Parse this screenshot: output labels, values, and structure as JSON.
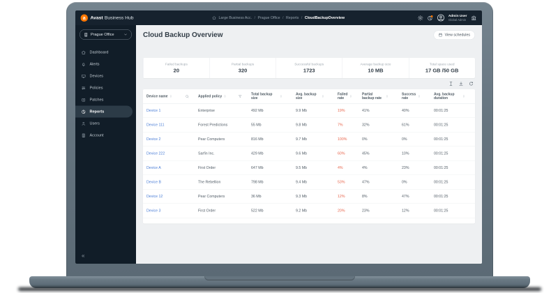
{
  "topbar": {
    "logo_letter": "a",
    "brand_bold": "Avast",
    "brand_rest": "Business Hub",
    "breadcrumb_separator": "/",
    "breadcrumbs": [
      {
        "label": "Large Business Acc."
      },
      {
        "label": "Prague Office"
      },
      {
        "label": "Reports"
      },
      {
        "label": "CloudBackupOverview",
        "current": true
      }
    ],
    "user_name": "Admin User",
    "user_role": "Global Admin"
  },
  "sidebar": {
    "org_selector": "Prague Office",
    "collapse_glyph": "«",
    "items": [
      {
        "label": "Dashboard",
        "icon": "home-icon",
        "name": "sidebar-item-dashboard"
      },
      {
        "label": "Alerts",
        "icon": "bell-icon",
        "name": "sidebar-item-alerts"
      },
      {
        "label": "Devices",
        "icon": "monitor-icon",
        "name": "sidebar-item-devices"
      },
      {
        "label": "Policies",
        "icon": "sliders-icon",
        "name": "sidebar-item-policies"
      },
      {
        "label": "Patches",
        "icon": "patch-icon",
        "name": "sidebar-item-patches"
      },
      {
        "label": "Reports",
        "icon": "pie-chart-icon",
        "name": "sidebar-item-reports",
        "active": true
      },
      {
        "label": "Users",
        "icon": "user-icon",
        "name": "sidebar-item-users"
      },
      {
        "label": "Account",
        "icon": "building-icon",
        "name": "sidebar-item-account"
      }
    ]
  },
  "page": {
    "title": "Cloud Backup Overview",
    "view_schedules_label": "View schedules"
  },
  "stats": [
    {
      "label": "Failed backups",
      "value": "20"
    },
    {
      "label": "Partial backups",
      "value": "320"
    },
    {
      "label": "Successful backups",
      "value": "1723"
    },
    {
      "label": "Average backup size",
      "value": "10 MB"
    },
    {
      "label": "Total space used",
      "value": "17 GB /50 GB"
    }
  ],
  "table": {
    "columns": [
      {
        "label": "Device name",
        "extra": "search-icon"
      },
      {
        "label": "Applied policy",
        "extra": "filter-icon"
      },
      {
        "label": "Total backup size"
      },
      {
        "label": "Avg. backup size"
      },
      {
        "label": "Failed rate"
      },
      {
        "label": "Partial backup rate"
      },
      {
        "label": "Success rate"
      },
      {
        "label": "Avg. backup duration"
      }
    ],
    "rows": [
      {
        "cells": [
          "Device 1",
          "Enterprise",
          "492 Mb",
          "9.9 Mb",
          "19%",
          "41%",
          "40%",
          "00:01:25"
        ]
      },
      {
        "cells": [
          "Device 111",
          "Forest Predictions",
          "55 Mb",
          "9.8 Mb",
          "7%",
          "32%",
          "61%",
          "00:01:25"
        ]
      },
      {
        "cells": [
          "Device 2",
          "Pear Computers",
          "816 Mb",
          "9.7 Mb",
          "100%",
          "0%",
          "0%",
          "00:01:25"
        ]
      },
      {
        "cells": [
          "Device 222",
          "Sarfin Inc.",
          "429 Mb",
          "9.6 Mb",
          "60%",
          "45%",
          "10%",
          "00:01:25"
        ]
      },
      {
        "cells": [
          "Device A",
          "First Order",
          "647 Mb",
          "9.5 Mb",
          "4%",
          "4%",
          "23%",
          "00:01:25"
        ]
      },
      {
        "cells": [
          "Device B",
          "The Rebellion",
          "798 Mb",
          "9.4 Mb",
          "53%",
          "47%",
          "0%",
          "00:01:25"
        ]
      },
      {
        "cells": [
          "Device 12",
          "Pear Computers",
          "36 Mb",
          "9.3 Mb",
          "12%",
          "8%",
          "47%",
          "00:01:25"
        ]
      },
      {
        "cells": [
          "Device 3",
          "First Order",
          "522 Mb",
          "9.2 Mb",
          "20%",
          "23%",
          "12%",
          "00:01:25"
        ]
      }
    ]
  },
  "colors": {
    "accent_orange": "#ff7800",
    "device_link_blue": "#4a7dd6",
    "failed_rate_red": "#e8664d",
    "topbar_bg": "#16222e",
    "sidebar_bg": "#111d28",
    "active_item_bg": "#2c3b47",
    "content_bg": "#eef0f2"
  }
}
